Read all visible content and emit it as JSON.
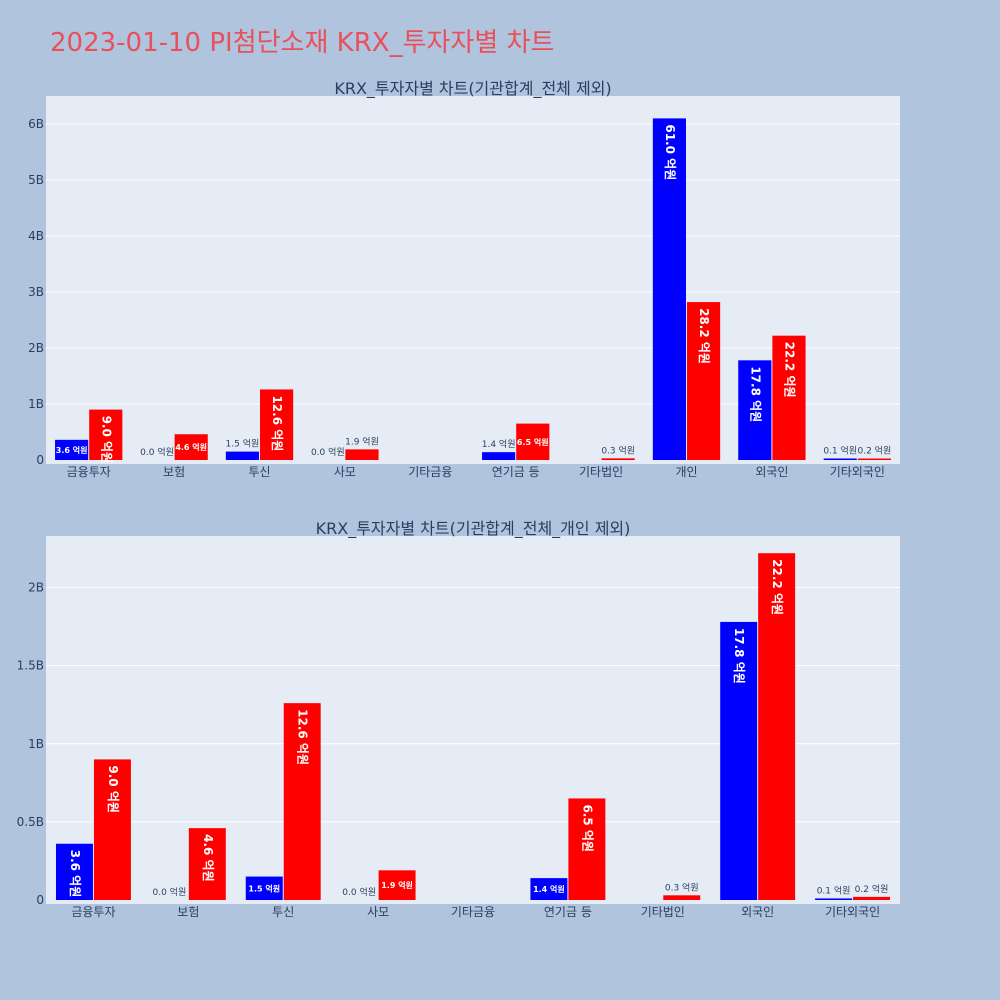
{
  "page_title": "2023-01-10 PI첨단소재 KRX_투자자별 차트",
  "colors": {
    "background": "#b0c4de",
    "plot_bg": "#e5ecf6",
    "series_blue": "#0000ff",
    "series_red": "#ff0000",
    "title": "#e8505b"
  },
  "chart_data": [
    {
      "type": "bar",
      "title": "KRX_투자자별 차트(기관합계_전체 제외)",
      "categories": [
        "금융투자",
        "보험",
        "투신",
        "사모",
        "기타금융",
        "연기금 등",
        "기타법인",
        "개인",
        "외국인",
        "기타외국인"
      ],
      "ylim": [
        0,
        6500000000
      ],
      "yticks": [
        0,
        1000000000,
        2000000000,
        3000000000,
        4000000000,
        5000000000,
        6000000000
      ],
      "ytick_labels": [
        "0",
        "1B",
        "2B",
        "3B",
        "4B",
        "5B",
        "6B"
      ],
      "grid": true,
      "series": [
        {
          "color": "#0000ff",
          "values": [
            360000000,
            0,
            150000000,
            0,
            0,
            140000000,
            0,
            6100000000,
            1780000000,
            10000000
          ],
          "labels": [
            "3.6 억원",
            "0.0 억원",
            "1.5 억원",
            "0.0 억원",
            "",
            "1.4 억원",
            "",
            "61.0 억원",
            "17.8 억원",
            "0.1 억원"
          ]
        },
        {
          "color": "#ff0000",
          "values": [
            900000000,
            460000000,
            1260000000,
            190000000,
            0,
            650000000,
            30000000,
            2820000000,
            2220000000,
            20000000
          ],
          "labels": [
            "9.0 억원",
            "4.6 억원",
            "12.6 억원",
            "1.9 억원",
            "",
            "6.5 억원",
            "0.3 억원",
            "28.2 억원",
            "22.2 억원",
            "0.2 억원"
          ]
        }
      ]
    },
    {
      "type": "bar",
      "title": "KRX_투자자별 차트(기관합계_전체_개인 제외)",
      "categories": [
        "금융투자",
        "보험",
        "투신",
        "사모",
        "기타금융",
        "연기금 등",
        "기타법인",
        "외국인",
        "기타외국인"
      ],
      "ylim": [
        0,
        2330000000
      ],
      "yticks": [
        0,
        500000000,
        1000000000,
        1500000000,
        2000000000
      ],
      "ytick_labels": [
        "0",
        "0.5B",
        "1B",
        "1.5B",
        "2B"
      ],
      "grid": true,
      "series": [
        {
          "color": "#0000ff",
          "values": [
            360000000,
            0,
            150000000,
            0,
            0,
            140000000,
            0,
            1780000000,
            10000000
          ],
          "labels": [
            "3.6 억원",
            "0.0 억원",
            "1.5 억원",
            "0.0 억원",
            "",
            "1.4 억원",
            "",
            "17.8 억원",
            "0.1 억원"
          ]
        },
        {
          "color": "#ff0000",
          "values": [
            900000000,
            460000000,
            1260000000,
            190000000,
            0,
            650000000,
            30000000,
            2220000000,
            20000000
          ],
          "labels": [
            "9.0 억원",
            "4.6 억원",
            "12.6 억원",
            "1.9 억원",
            "",
            "6.5 억원",
            "0.3 억원",
            "22.2 억원",
            "0.2 억원"
          ]
        }
      ]
    }
  ]
}
